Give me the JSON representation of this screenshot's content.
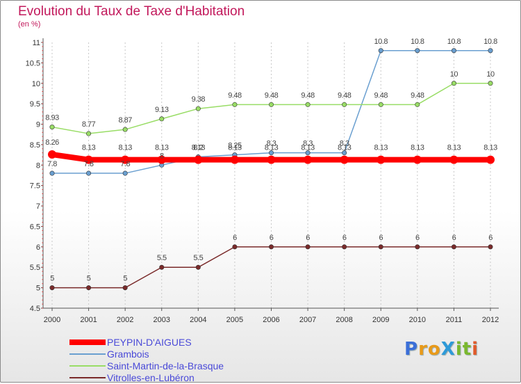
{
  "title": "Evolution du Taux de Taxe d'Habitation",
  "subtitle": "(en %)",
  "logo": {
    "text": "ProXiti",
    "letters": [
      {
        "ch": "P",
        "color": "#3b6fd8"
      },
      {
        "ch": "r",
        "color": "#e89a1a"
      },
      {
        "ch": "o",
        "color": "#e89a1a"
      },
      {
        "ch": "X",
        "color": "#2e9ad8"
      },
      {
        "ch": "i",
        "color": "#7ab82e"
      },
      {
        "ch": "t",
        "color": "#7ab82e"
      },
      {
        "ch": "i",
        "color": "#e05a2a"
      }
    ]
  },
  "chart_data": {
    "type": "line",
    "x": [
      "2000",
      "2001",
      "2002",
      "2003",
      "2004",
      "2005",
      "2006",
      "2007",
      "2008",
      "2009",
      "2010",
      "2011",
      "2012"
    ],
    "ylim": [
      4.5,
      11
    ],
    "yticks": [
      "4.5",
      "5",
      "5.5",
      "6",
      "6.5",
      "7",
      "7.5",
      "8",
      "8.5",
      "9",
      "9.5",
      "10",
      "10.5",
      "11"
    ],
    "grid": "vertical-dashed",
    "legend_position": "bottom-left",
    "series": [
      {
        "name": "PEYPIN-D'AIGUES",
        "color": "#ff0000",
        "values": [
          8.26,
          8.13,
          8.13,
          8.13,
          8.13,
          8.13,
          8.13,
          8.13,
          8.13,
          8.13,
          8.13,
          8.13,
          8.13
        ],
        "labels": [
          "8.26",
          "8.13",
          "8.13",
          "8.13",
          "8.13",
          "8.13",
          "8.13",
          "8.13",
          "8.13",
          "8.13",
          "8.13",
          "8.13",
          "8.13"
        ]
      },
      {
        "name": "Grambois",
        "color": "#6a9fd0",
        "values": [
          7.8,
          7.8,
          7.8,
          8,
          8.2,
          8.25,
          8.3,
          8.3,
          8.3,
          10.8,
          10.8,
          10.8,
          10.8
        ],
        "labels": [
          "7.8",
          "7.8",
          "7.8",
          "8",
          "8.2",
          "8.25",
          "8.3",
          "8.3",
          "8.3",
          "10.8",
          "10.8",
          "10.8",
          "10.8"
        ]
      },
      {
        "name": "Saint-Martin-de-la-Brasque",
        "color": "#99dd66",
        "values": [
          8.93,
          8.77,
          8.87,
          9.13,
          9.38,
          9.48,
          9.48,
          9.48,
          9.48,
          9.48,
          9.48,
          10,
          10
        ],
        "labels": [
          "8.93",
          "8.77",
          "8.87",
          "9.13",
          "9.38",
          "9.48",
          "9.48",
          "9.48",
          "9.48",
          "9.48",
          "9.48",
          "10",
          "10"
        ]
      },
      {
        "name": "Vitrolles-en-Lubéron",
        "color": "#7a2a2a",
        "values": [
          5,
          5,
          5,
          5.5,
          5.5,
          6,
          6,
          6,
          6,
          6,
          6,
          6,
          6
        ],
        "labels": [
          "5",
          "5",
          "5",
          "5.5",
          "5.5",
          "6",
          "6",
          "6",
          "6",
          "6",
          "6",
          "6",
          "6"
        ]
      }
    ]
  }
}
